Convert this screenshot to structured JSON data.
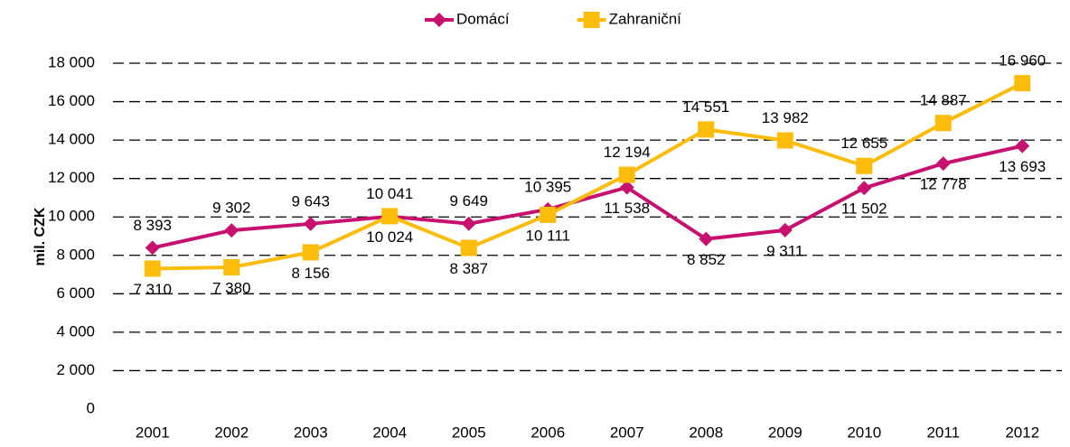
{
  "chart_data": {
    "type": "line",
    "y_label": "mil. CZK",
    "categories": [
      "2001",
      "2002",
      "2003",
      "2004",
      "2005",
      "2006",
      "2007",
      "2008",
      "2009",
      "2010",
      "2011",
      "2012"
    ],
    "series": [
      {
        "name": "Domácí",
        "color": "#c8106e",
        "marker": "diamond",
        "values": [
          8393,
          9302,
          9643,
          10024,
          9649,
          10395,
          11538,
          8852,
          9311,
          11502,
          12778,
          13693
        ],
        "value_labels": [
          "8 393",
          "9 302",
          "9 643",
          "10 024",
          "9 649",
          "10 395",
          "11 538",
          "8 852",
          "9 311",
          "11 502",
          "12 778",
          "13 693"
        ]
      },
      {
        "name": "Zahraniční",
        "color": "#fbbc0c",
        "marker": "square",
        "values": [
          7310,
          7380,
          8156,
          10041,
          8387,
          10111,
          12194,
          14551,
          13982,
          12655,
          14887,
          16960
        ],
        "value_labels": [
          "7 310",
          "7 380",
          "8 156",
          "10 041",
          "8 387",
          "10 111",
          "12 194",
          "14 551",
          "13 982",
          "12 655",
          "14 887",
          "16 960"
        ]
      }
    ],
    "ylim": [
      0,
      18000
    ],
    "yticks": [
      0,
      {
        "value": 2000,
        "label": "2 000"
      },
      {
        "value": 4000,
        "label": "4 000"
      },
      {
        "value": 6000,
        "label": "6 000"
      },
      {
        "value": 8000,
        "label": "8 000"
      },
      {
        "value": 10000,
        "label": "10 000"
      },
      {
        "value": 12000,
        "label": "12 000"
      },
      {
        "value": 14000,
        "label": "14 000"
      },
      {
        "value": 16000,
        "label": "16 000"
      },
      {
        "value": 18000,
        "label": "18 000"
      }
    ],
    "grid": true,
    "legend": "top"
  }
}
